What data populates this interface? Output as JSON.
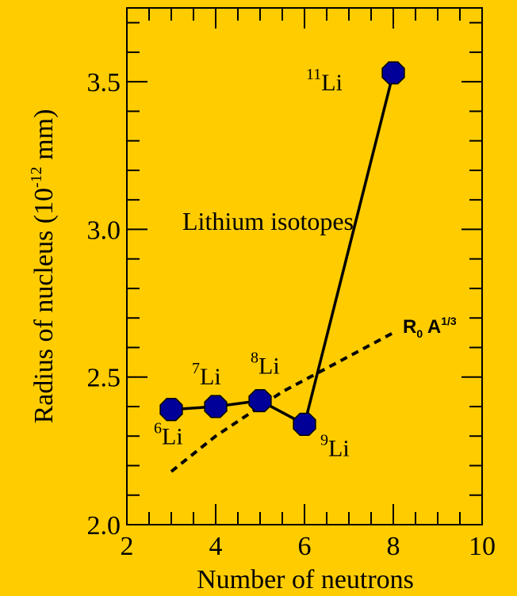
{
  "chart_data": {
    "type": "line",
    "xlabel": "Number of neutrons",
    "ylabel_prefix": "Radius of nucleus (10",
    "ylabel_exp": "-12",
    "ylabel_suffix": " mm)",
    "xlim": [
      2,
      10
    ],
    "ylim": [
      2.0,
      3.75
    ],
    "x_ticks": [
      2,
      4,
      6,
      8,
      10
    ],
    "x_tick_labels": [
      "2",
      "4",
      "6",
      "8",
      "10"
    ],
    "y_ticks": [
      2.0,
      2.5,
      3.0,
      3.5
    ],
    "y_tick_labels": [
      "2.0",
      "2.5",
      "3.0",
      "3.5"
    ],
    "annotation": "Lithium isotopes",
    "series": [
      {
        "type": "line-markers",
        "color": "#000000",
        "marker_color": "#000099",
        "x": [
          3,
          4,
          5,
          6,
          8
        ],
        "y": [
          2.39,
          2.4,
          2.42,
          2.34,
          3.53
        ],
        "point_labels": [
          {
            "mass": "6",
            "element": "Li"
          },
          {
            "mass": "7",
            "element": "Li"
          },
          {
            "mass": "8",
            "element": "Li"
          },
          {
            "mass": "9",
            "element": "Li"
          },
          {
            "mass": "11",
            "element": "Li"
          }
        ]
      },
      {
        "name": "R0 A1/3",
        "label_main": "R",
        "label_sub": "0",
        "label_a": " A",
        "label_exp": "1/3",
        "type": "dashed",
        "color": "#000000",
        "x": [
          3,
          3.5,
          4,
          4.5,
          5,
          5.5,
          6,
          6.5,
          7,
          7.5,
          8
        ],
        "y": [
          2.18,
          2.24,
          2.3,
          2.35,
          2.4,
          2.45,
          2.49,
          2.53,
          2.57,
          2.61,
          2.65
        ]
      }
    ],
    "background": "#FFCC00"
  }
}
